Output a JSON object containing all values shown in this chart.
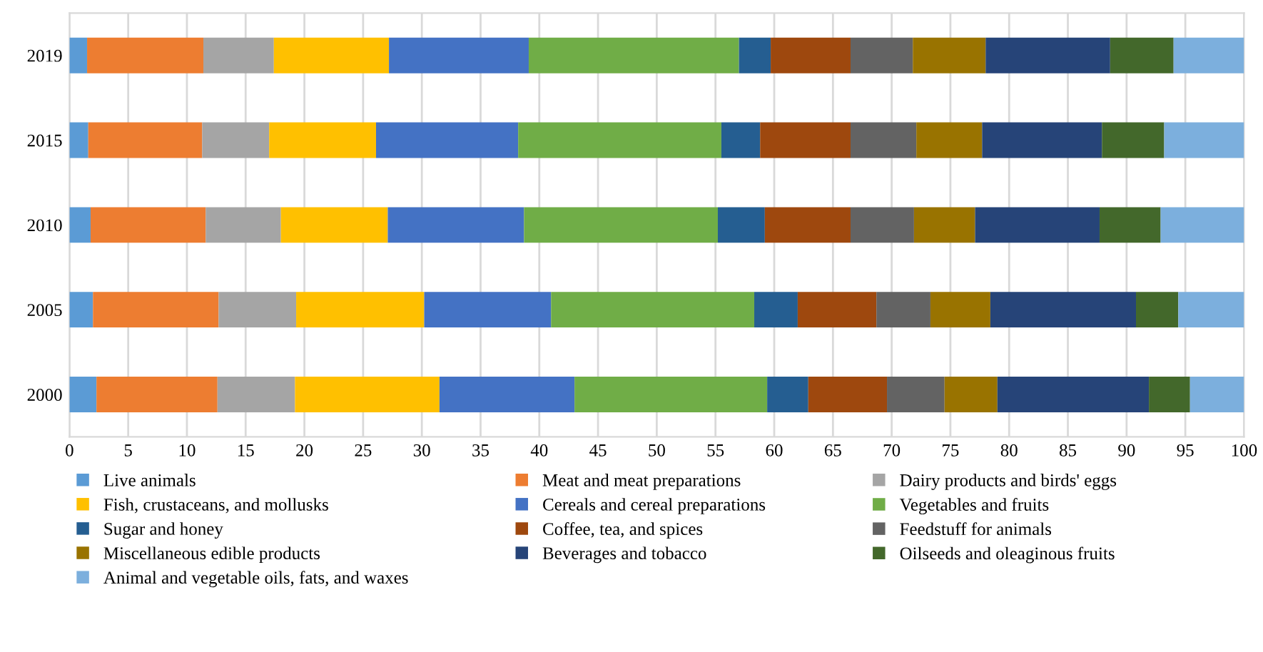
{
  "chart_data": {
    "type": "bar",
    "orientation": "horizontal",
    "stacked": true,
    "categories": [
      "2019",
      "2015",
      "2010",
      "2005",
      "2000"
    ],
    "xlim": [
      0,
      100
    ],
    "xticks": [
      0,
      5,
      10,
      15,
      20,
      25,
      30,
      35,
      40,
      45,
      50,
      55,
      60,
      65,
      70,
      75,
      80,
      85,
      90,
      95,
      100
    ],
    "grid": "x",
    "legend": "bottom",
    "series": [
      {
        "name": "Live animals",
        "color": "#5b9bd5",
        "values": [
          1.5,
          1.6,
          1.8,
          2.0,
          2.3
        ]
      },
      {
        "name": "Meat and meat preparations",
        "color": "#ed7d31",
        "values": [
          9.9,
          9.7,
          9.8,
          10.7,
          10.3
        ]
      },
      {
        "name": "Dairy products and birds' eggs",
        "color": "#a5a5a5",
        "values": [
          6.0,
          5.7,
          6.4,
          6.6,
          6.6
        ]
      },
      {
        "name": "Fish, crustaceans, and mollusks",
        "color": "#ffc000",
        "values": [
          9.8,
          9.1,
          9.1,
          10.9,
          12.3
        ]
      },
      {
        "name": "Cereals and cereal preparations",
        "color": "#4472c4",
        "values": [
          11.9,
          12.1,
          11.6,
          10.8,
          11.5
        ]
      },
      {
        "name": "Vegetables and fruits",
        "color": "#70ad47",
        "values": [
          17.9,
          17.3,
          16.5,
          17.3,
          16.4
        ]
      },
      {
        "name": "Sugar and honey",
        "color": "#255e91",
        "values": [
          2.7,
          3.3,
          4.0,
          3.7,
          3.5
        ]
      },
      {
        "name": "Coffee, tea, and spices",
        "color": "#9e480e",
        "values": [
          6.8,
          7.7,
          7.3,
          6.7,
          6.7
        ]
      },
      {
        "name": "Feedstuff for animals",
        "color": "#636363",
        "values": [
          5.3,
          5.6,
          5.4,
          4.6,
          4.9
        ]
      },
      {
        "name": "Miscellaneous edible products",
        "color": "#997300",
        "values": [
          6.2,
          5.6,
          5.2,
          5.1,
          4.5
        ]
      },
      {
        "name": "Beverages and tobacco",
        "color": "#264478",
        "values": [
          10.6,
          10.2,
          10.6,
          12.4,
          12.9
        ]
      },
      {
        "name": "Oilseeds and oleaginous fruits",
        "color": "#43682b",
        "values": [
          5.4,
          5.3,
          5.2,
          3.6,
          3.5
        ]
      },
      {
        "name": "Animal and vegetable oils, fats, and waxes",
        "color": "#7cafdd",
        "values": [
          6.0,
          6.8,
          7.1,
          5.6,
          4.6
        ]
      }
    ]
  }
}
